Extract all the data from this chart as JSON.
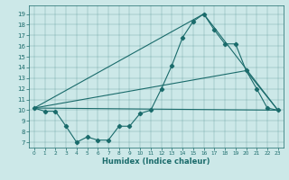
{
  "xlabel": "Humidex (Indice chaleur)",
  "bg_color": "#cce8e8",
  "line_color": "#1a6b6b",
  "xlim": [
    -0.5,
    23.5
  ],
  "ylim": [
    6.5,
    19.8
  ],
  "yticks": [
    7,
    8,
    9,
    10,
    11,
    12,
    13,
    14,
    15,
    16,
    17,
    18,
    19
  ],
  "xticks": [
    0,
    1,
    2,
    3,
    4,
    5,
    6,
    7,
    8,
    9,
    10,
    11,
    12,
    13,
    14,
    15,
    16,
    17,
    18,
    19,
    20,
    21,
    22,
    23
  ],
  "main_series": {
    "x": [
      0,
      1,
      2,
      3,
      4,
      5,
      6,
      7,
      8,
      9,
      10,
      11,
      12,
      13,
      14,
      15,
      16,
      17,
      18,
      19,
      20,
      21,
      22,
      23
    ],
    "y": [
      10.2,
      9.9,
      9.9,
      8.5,
      7.0,
      7.5,
      7.2,
      7.2,
      8.5,
      8.5,
      9.7,
      10.0,
      12.0,
      14.2,
      16.8,
      18.3,
      19.0,
      17.5,
      16.2,
      16.2,
      13.7,
      12.0,
      10.2,
      10.0
    ]
  },
  "ref_lines": [
    {
      "x": [
        0,
        23
      ],
      "y": [
        10.2,
        10.0
      ]
    },
    {
      "x": [
        0,
        20,
        23
      ],
      "y": [
        10.2,
        13.7,
        10.0
      ]
    },
    {
      "x": [
        0,
        16,
        23
      ],
      "y": [
        10.2,
        19.0,
        10.0
      ]
    }
  ],
  "tick_labelsize": 5,
  "xlabel_fontsize": 6,
  "linewidth": 0.8,
  "markersize": 2.2
}
